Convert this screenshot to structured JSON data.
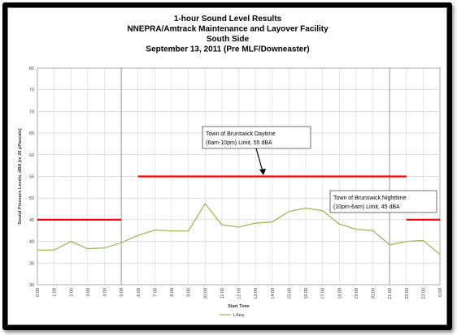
{
  "chart_data": {
    "type": "line",
    "title": [
      "1-hour Sound Level Results",
      "NNEPRA/Amtrack Maintenance and Layover Facility",
      "South  Side",
      "September 13, 2011 (Pre MLF/Downeaster)"
    ],
    "xlabel": "Start Time",
    "ylabel": "Sound Pressure Levels, dBA (re 20 μPascals)",
    "ylim": [
      30,
      80
    ],
    "yticks": [
      "30",
      "35",
      "40",
      "45",
      "50",
      "55",
      "60",
      "65",
      "70",
      "75",
      "80"
    ],
    "categories": [
      "0:00",
      "1:00",
      "2:00",
      "3:00",
      "4:00",
      "5:00",
      "6:00",
      "7:00",
      "8:00",
      "9:00",
      "10:00",
      "11:00",
      "12:00",
      "13:00",
      "14:00",
      "15:00",
      "16:00",
      "17:00",
      "18:00",
      "19:00",
      "20:00",
      "21:00",
      "22:00",
      "23:00",
      "0:00"
    ],
    "series": [
      {
        "name": "LAeq",
        "color": "#9bbb59",
        "values": [
          38.0,
          38.0,
          40.0,
          38.3,
          38.5,
          39.7,
          41.4,
          42.6,
          42.4,
          42.4,
          48.7,
          43.8,
          43.3,
          44.2,
          44.5,
          46.9,
          47.7,
          47.1,
          44.0,
          42.8,
          42.5,
          39.2,
          40.0,
          40.2,
          37.0
        ]
      }
    ],
    "limits": [
      {
        "label": "Town of Brunswick Nighttime (10pm-6am) Limit, 45 dBA",
        "value": 45,
        "ranges": [
          [
            0,
            5
          ],
          [
            22,
            24
          ]
        ],
        "color": "#ff0000"
      },
      {
        "label": "Town of Brunswick Daytime (6am-10pm) Limit, 55 dBA",
        "value": 55,
        "ranges": [
          [
            6,
            22
          ]
        ],
        "color": "#ff0000"
      }
    ],
    "annotations": [
      {
        "lines": [
          "Town of Brunswick Daytime",
          "(6am-10pm) Limit, 55 dBA"
        ]
      },
      {
        "lines": [
          "Town of Brunswick Nighttime",
          "(10pm-6am) Limit, 45 dBA"
        ]
      }
    ],
    "legend": "bottom-center",
    "grid": true,
    "divider_lines_at": [
      "6:00",
      "22:00"
    ]
  }
}
